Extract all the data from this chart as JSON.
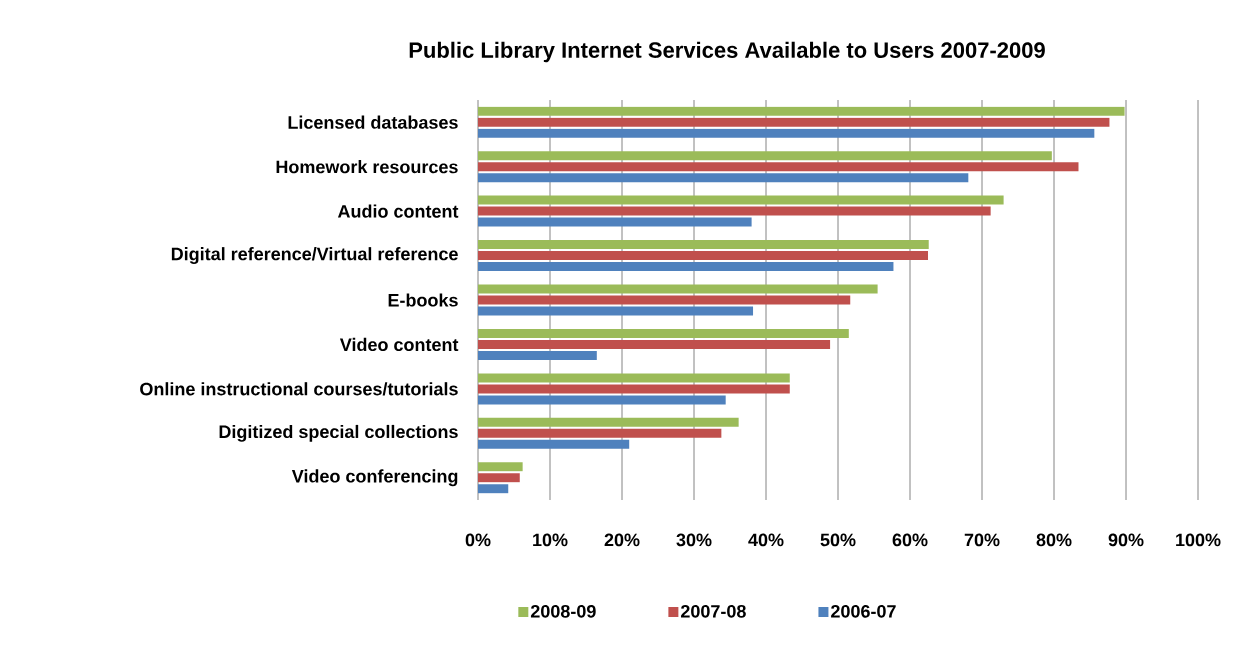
{
  "chart_data": {
    "type": "bar",
    "orientation": "horizontal",
    "title": "Public Library Internet Services Available to Users  2007-2009",
    "categories": [
      "Licensed databases",
      "Homework resources",
      "Audio content",
      "Digital reference/Virtual reference",
      "E-books",
      "Video content",
      "Online instructional courses/tutorials",
      "Digitized special collections",
      "Video conferencing"
    ],
    "series": [
      {
        "name": "2008-09",
        "color": "#9bbb59",
        "values": [
          89.8,
          79.7,
          73.0,
          62.6,
          55.5,
          51.5,
          43.3,
          36.2,
          6.2
        ]
      },
      {
        "name": "2007-08",
        "color": "#c0504d",
        "values": [
          87.7,
          83.4,
          71.2,
          62.5,
          51.7,
          48.9,
          43.3,
          33.8,
          5.8
        ]
      },
      {
        "name": "2006-07",
        "color": "#4f81bd",
        "values": [
          85.6,
          68.1,
          38.0,
          57.7,
          38.2,
          16.5,
          34.4,
          21.0,
          4.2
        ]
      }
    ],
    "xlim": [
      0,
      100
    ],
    "xticks": [
      {
        "value": 0,
        "label": "0%"
      },
      {
        "value": 10,
        "label": "10%"
      },
      {
        "value": 20,
        "label": "20%"
      },
      {
        "value": 30,
        "label": "30%"
      },
      {
        "value": 40,
        "label": "40%"
      },
      {
        "value": 50,
        "label": "50%"
      },
      {
        "value": 60,
        "label": "60%"
      },
      {
        "value": 70,
        "label": "70%"
      },
      {
        "value": 80,
        "label": "80%"
      },
      {
        "value": 90,
        "label": "90%"
      },
      {
        "value": 100,
        "label": "100%"
      }
    ],
    "grid": "x",
    "legend": "bottom"
  }
}
